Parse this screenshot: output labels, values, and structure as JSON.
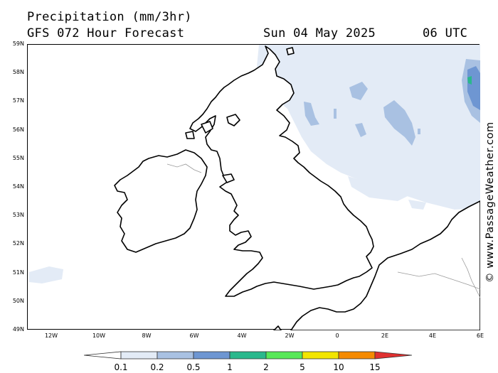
{
  "header": {
    "title": "Precipitation (mm/3hr)",
    "subtitle": "GFS 072 Hour Forecast",
    "date": "Sun 04 May 2025",
    "time": "06 UTC"
  },
  "map": {
    "lat_labels": [
      "59N",
      "58N",
      "57N",
      "56N",
      "55N",
      "54N",
      "53N",
      "52N",
      "51N",
      "50N",
      "49N"
    ],
    "lon_labels": [
      "12W",
      "10W",
      "8W",
      "6W",
      "4W",
      "2W",
      "0",
      "2E",
      "4E",
      "6E"
    ],
    "precip_colors": {
      "light": "#e3ebf6",
      "mid": "#a9c1e2",
      "heavy": "#6e96d2",
      "green": "#2ab88c"
    }
  },
  "legend": {
    "ticks": [
      "0.1",
      "0.2",
      "0.5",
      "1",
      "2",
      "5",
      "10",
      "15"
    ],
    "colors": [
      "#ffffff",
      "#e3ebf6",
      "#a9c1e2",
      "#6e96d2",
      "#2ab88c",
      "#58e858",
      "#f2e500",
      "#f58a00",
      "#e03030"
    ]
  },
  "watermark": "© www.PassageWeather.com"
}
